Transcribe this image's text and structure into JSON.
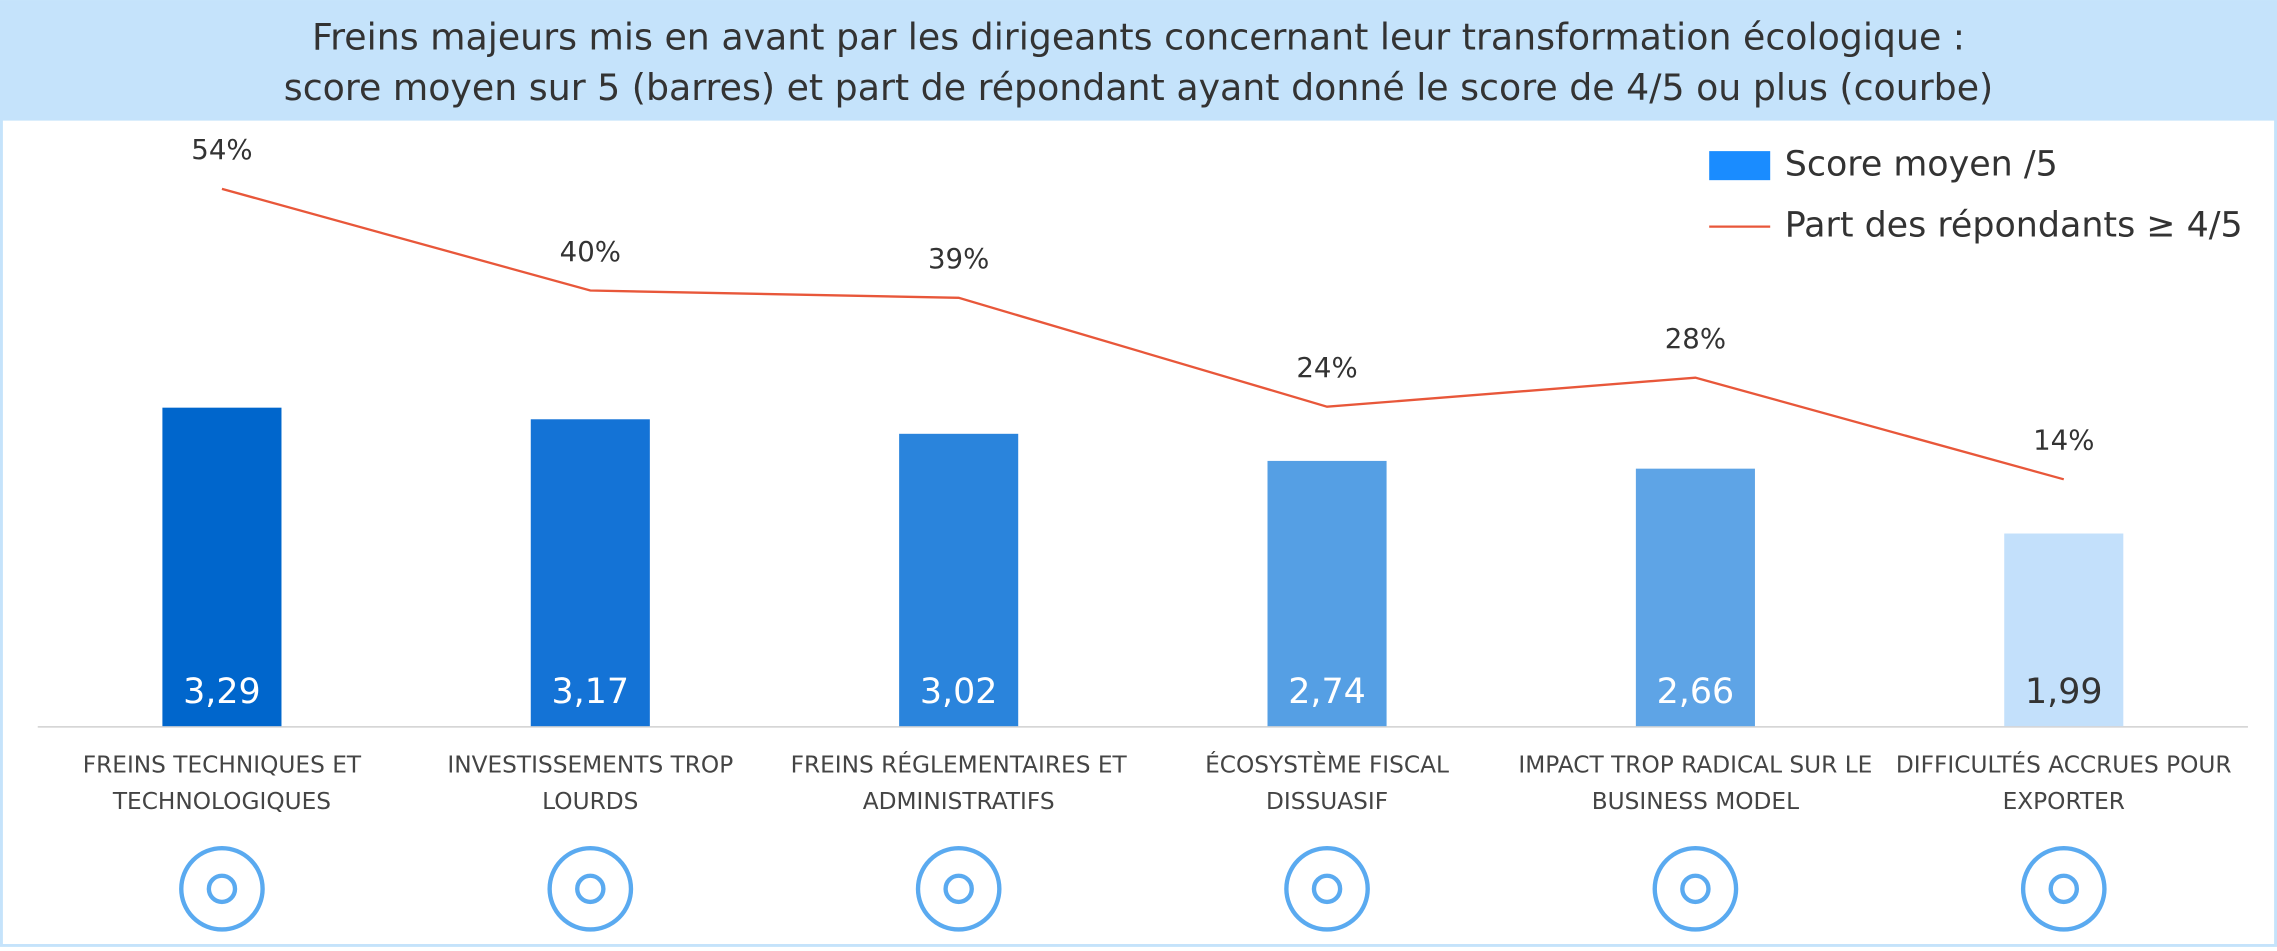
{
  "chart_data": {
    "type": "bar-line",
    "title": [
      "Freins majeurs mis en avant par les dirigeants concernant leur transformation écologique :",
      "score moyen sur 5 (barres) et part de répondant ayant donné le score de 4/5 ou plus (courbe)"
    ],
    "categories": [
      "FREINS TECHNIQUES ET TECHNOLOGIQUES",
      "INVESTISSEMENTS TROP LOURDS",
      "FREINS RÉGLEMENTAIRES ET ADMINISTRATIFS",
      "ÉCOSYSTÈME FISCAL DISSUASIF",
      "IMPACT TROP RADICAL SUR LE BUSINESS MODEL",
      "DIFFICULTÉS ACCRUES POUR EXPORTER"
    ],
    "series": [
      {
        "name": "Score moyen /5",
        "type": "bar",
        "color": "#1a8cff",
        "colors": [
          "#0066cc",
          "#1473d6",
          "#2a84dc",
          "#559fe4",
          "#5ea4e6",
          "#c3e0fb"
        ],
        "values": [
          3.29,
          3.17,
          3.02,
          2.74,
          2.66,
          1.99
        ],
        "value_labels": [
          "3,29",
          "3,17",
          "3,02",
          "2,74",
          "2,66",
          "1,99"
        ],
        "value_label_colors": [
          "#ffffff",
          "#ffffff",
          "#ffffff",
          "#ffffff",
          "#ffffff",
          "#333333"
        ]
      },
      {
        "name": "Part des répondants ≥ 4/5",
        "type": "line",
        "axis": "y2",
        "color": "#e8573a",
        "values": [
          54,
          40,
          39,
          24,
          28,
          14
        ],
        "value_labels": [
          "54%",
          "40%",
          "39%",
          "24%",
          "28%",
          "14%"
        ]
      }
    ],
    "ylim": [
      0,
      6
    ],
    "y2lim": [
      -20,
      60
    ],
    "legend": "top-right"
  }
}
